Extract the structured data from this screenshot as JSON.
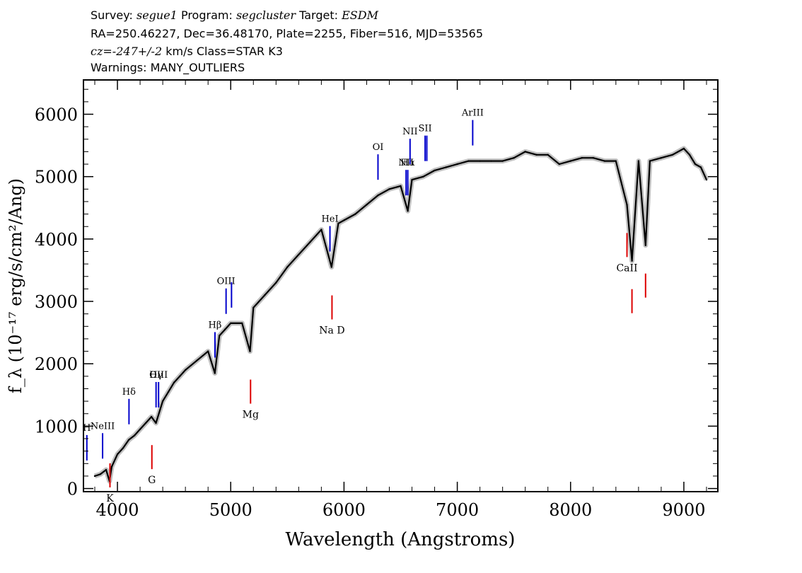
{
  "header": {
    "survey_label": "Survey:",
    "survey": "segue1",
    "program_label": "Program:",
    "program": "segcluster",
    "target_label": "Target:",
    "target": "ESDM",
    "line2": "RA=250.46227, Dec=36.48170, Plate=2255, Fiber=516, MJD=53565",
    "cz_label": "cz=",
    "cz_value": "-247+/-2",
    "cz_rest": "km/s Class=STAR K3",
    "warnings": "Warnings: MANY_OUTLIERS"
  },
  "chart_data": {
    "type": "line",
    "title": "",
    "xlabel": "Wavelength (Angstroms)",
    "ylabel": "f_λ (10⁻¹⁷ erg/s/cm²/Ang)",
    "xlim": [
      3700,
      9300
    ],
    "ylim": [
      -50,
      6550
    ],
    "x_ticks": [
      4000,
      5000,
      6000,
      7000,
      8000,
      9000
    ],
    "y_ticks": [
      0,
      1000,
      2000,
      3000,
      4000,
      5000,
      6000
    ],
    "x_tick_labels": [
      "4000",
      "5000",
      "6000",
      "7000",
      "8000",
      "9000"
    ],
    "y_tick_labels": [
      "0",
      "1000",
      "2000",
      "3000",
      "4000",
      "5000",
      "6000"
    ],
    "grid": false,
    "series": [
      {
        "color": "#000000",
        "error_band_color": "#c0c0c0",
        "points": [
          [
            3800,
            200
          ],
          [
            3850,
            230
          ],
          [
            3900,
            300
          ],
          [
            3930,
            120
          ],
          [
            3950,
            350
          ],
          [
            4000,
            550
          ],
          [
            4050,
            650
          ],
          [
            4100,
            780
          ],
          [
            4150,
            850
          ],
          [
            4200,
            950
          ],
          [
            4250,
            1050
          ],
          [
            4300,
            1150
          ],
          [
            4340,
            1050
          ],
          [
            4400,
            1400
          ],
          [
            4450,
            1550
          ],
          [
            4500,
            1700
          ],
          [
            4550,
            1800
          ],
          [
            4600,
            1900
          ],
          [
            4700,
            2050
          ],
          [
            4800,
            2200
          ],
          [
            4860,
            1850
          ],
          [
            4900,
            2450
          ],
          [
            4950,
            2550
          ],
          [
            5000,
            2650
          ],
          [
            5100,
            2650
          ],
          [
            5170,
            2200
          ],
          [
            5200,
            2900
          ],
          [
            5300,
            3100
          ],
          [
            5400,
            3300
          ],
          [
            5500,
            3550
          ],
          [
            5600,
            3750
          ],
          [
            5700,
            3950
          ],
          [
            5800,
            4150
          ],
          [
            5890,
            3550
          ],
          [
            5950,
            4250
          ],
          [
            6000,
            4300
          ],
          [
            6100,
            4400
          ],
          [
            6200,
            4550
          ],
          [
            6300,
            4700
          ],
          [
            6400,
            4800
          ],
          [
            6500,
            4850
          ],
          [
            6563,
            4450
          ],
          [
            6600,
            4950
          ],
          [
            6700,
            5000
          ],
          [
            6800,
            5100
          ],
          [
            6900,
            5150
          ],
          [
            7000,
            5200
          ],
          [
            7100,
            5250
          ],
          [
            7200,
            5250
          ],
          [
            7300,
            5250
          ],
          [
            7400,
            5250
          ],
          [
            7500,
            5300
          ],
          [
            7600,
            5400
          ],
          [
            7700,
            5350
          ],
          [
            7800,
            5350
          ],
          [
            7900,
            5200
          ],
          [
            8000,
            5250
          ],
          [
            8100,
            5300
          ],
          [
            8200,
            5300
          ],
          [
            8300,
            5250
          ],
          [
            8400,
            5250
          ],
          [
            8498,
            4550
          ],
          [
            8542,
            3650
          ],
          [
            8600,
            5250
          ],
          [
            8662,
            3900
          ],
          [
            8700,
            5250
          ],
          [
            8800,
            5300
          ],
          [
            8900,
            5350
          ],
          [
            9000,
            5450
          ],
          [
            9050,
            5350
          ],
          [
            9100,
            5200
          ],
          [
            9150,
            5150
          ],
          [
            9200,
            4950
          ]
        ]
      }
    ],
    "emission_lines": [
      {
        "label": "H",
        "wavelength": 3730
      },
      {
        "label": "NeIII",
        "wavelength": 3869
      },
      {
        "label": "Hδ",
        "wavelength": 4102
      },
      {
        "label": "Hγ",
        "wavelength": 4341
      },
      {
        "label": "OIII",
        "wavelength": 4363
      },
      {
        "label": "Hβ",
        "wavelength": 4861
      },
      {
        "label": "OIII",
        "wavelength": 4959
      },
      {
        "label": "",
        "wavelength": 5007
      },
      {
        "label": "HeI",
        "wavelength": 5876
      },
      {
        "label": "OI",
        "wavelength": 6300
      },
      {
        "label": "NII",
        "wavelength": 6548
      },
      {
        "label": "Hα",
        "wavelength": 6563
      },
      {
        "label": "NII",
        "wavelength": 6583
      },
      {
        "label": "SII",
        "wavelength": 6716
      },
      {
        "label": "",
        "wavelength": 6731
      },
      {
        "label": "ArIII",
        "wavelength": 7136
      }
    ],
    "absorption_lines": [
      {
        "label": "K",
        "wavelength": 3934
      },
      {
        "label": "G",
        "wavelength": 4304
      },
      {
        "label": "Mg",
        "wavelength": 5175
      },
      {
        "label": "Na  D",
        "wavelength": 5894
      },
      {
        "label": "CaII",
        "wavelength": 8498
      },
      {
        "label": "",
        "wavelength": 8542
      },
      {
        "label": "",
        "wavelength": 8662
      }
    ],
    "colors": {
      "emission": "#0000cc",
      "absorption": "#dd0000",
      "spectrum": "#000000",
      "error": "#c0c0c0"
    }
  }
}
